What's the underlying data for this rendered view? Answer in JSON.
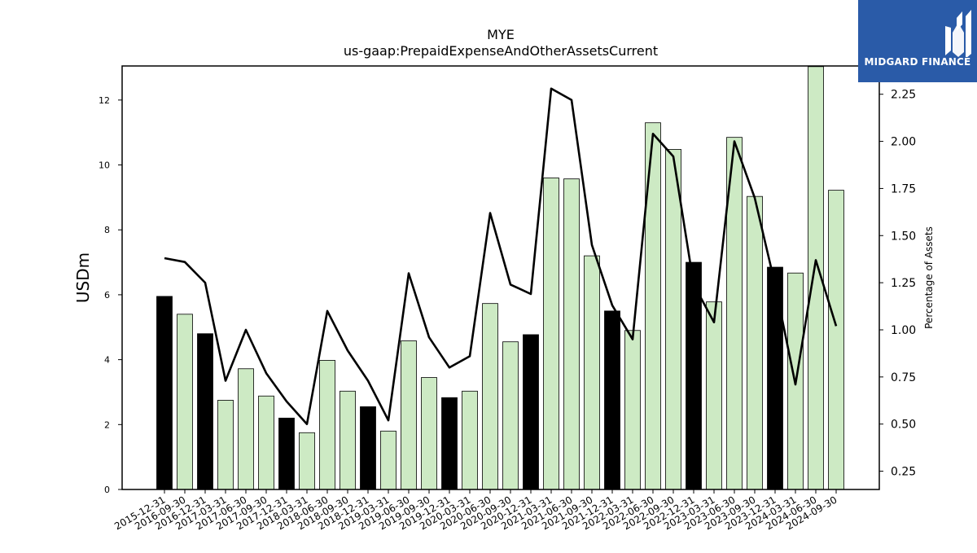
{
  "brand": {
    "name": "MIDGARD FINANCE",
    "bg_color": "#2a5ba8",
    "logo_icon": "midgard-logo-icon"
  },
  "colors": {
    "bar_normal": "#cdeac4",
    "bar_highlight": "#000000",
    "bar_edge": "#000000",
    "line": "#000000"
  },
  "chart_data": {
    "type": "bar",
    "title": "MYE",
    "subtitle": "us-gaap:PrepaidExpenseAndOtherAssetsCurrent",
    "ylabel": "USDm",
    "y2label": "Percentage of Assets",
    "ylim": [
      0,
      13.05
    ],
    "y2lim": [
      0.153,
      2.4
    ],
    "yticks": [
      "0",
      "2",
      "4",
      "6",
      "8",
      "10",
      "12"
    ],
    "y2ticks": [
      "0.25",
      "0.50",
      "0.75",
      "1.00",
      "1.25",
      "1.50",
      "1.75",
      "2.00",
      "2.25"
    ],
    "grid": false,
    "categories": [
      "2015-12-31",
      "2016-09-30",
      "2016-12-31",
      "2017-03-31",
      "2017-06-30",
      "2017-09-30",
      "2017-12-31",
      "2018-03-31",
      "2018-06-30",
      "2018-09-30",
      "2018-12-31",
      "2019-03-31",
      "2019-06-30",
      "2019-09-30",
      "2019-12-31",
      "2020-03-31",
      "2020-06-30",
      "2020-09-30",
      "2020-12-31",
      "2021-03-31",
      "2021-06-30",
      "2021-09-30",
      "2021-12-31",
      "2022-03-31",
      "2022-06-30",
      "2022-09-30",
      "2022-12-31",
      "2023-03-31",
      "2023-06-30",
      "2023-09-30",
      "2023-12-31",
      "2024-03-31",
      "2024-06-30",
      "2024-09-30"
    ],
    "series": [
      {
        "kind": "bar",
        "axis": "left",
        "values": [
          5.95,
          5.4,
          4.8,
          2.75,
          3.72,
          2.88,
          2.2,
          1.75,
          3.98,
          3.03,
          2.55,
          1.8,
          4.58,
          3.45,
          2.83,
          3.03,
          5.73,
          4.55,
          4.77,
          9.6,
          9.57,
          7.2,
          5.5,
          4.9,
          11.3,
          10.48,
          7.0,
          5.78,
          10.85,
          9.03,
          6.85,
          6.67,
          13.03,
          9.22
        ],
        "highlight": [
          true,
          false,
          true,
          false,
          false,
          false,
          true,
          false,
          false,
          false,
          true,
          false,
          false,
          false,
          true,
          false,
          false,
          false,
          true,
          false,
          false,
          false,
          true,
          false,
          false,
          false,
          true,
          false,
          false,
          false,
          true,
          false,
          false,
          false
        ]
      },
      {
        "kind": "line",
        "axis": "right",
        "values": [
          1.38,
          1.36,
          1.25,
          0.73,
          1.0,
          0.77,
          0.62,
          0.5,
          1.1,
          0.89,
          0.73,
          0.52,
          1.3,
          0.96,
          0.8,
          0.86,
          1.62,
          1.24,
          1.19,
          2.28,
          2.22,
          1.45,
          1.13,
          0.95,
          2.04,
          1.92,
          1.24,
          1.04,
          2.0,
          1.7,
          1.24,
          0.71,
          1.37,
          1.02
        ]
      }
    ]
  }
}
